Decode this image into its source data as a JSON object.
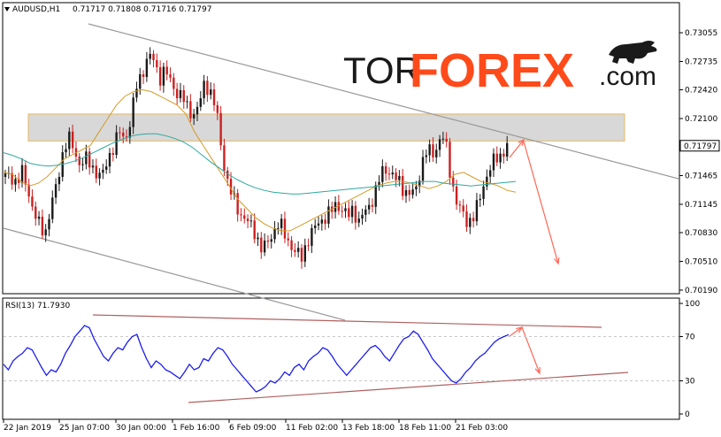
{
  "chart_data": [
    {
      "type": "candlestick",
      "header": {
        "symbol_label": "AUDUSD,H1",
        "ohlc_text": "0.71717 0.71808 0.71716 0.71797"
      },
      "y_ticks": [
        "0.73055",
        "0.72735",
        "0.72420",
        "0.72100",
        "0.71465",
        "0.71145",
        "0.70830",
        "0.70510",
        "0.70190"
      ],
      "y_tick_values": [
        0.73055,
        0.72735,
        0.7242,
        0.721,
        0.71465,
        0.71145,
        0.7083,
        0.7051,
        0.7019
      ],
      "ylim": [
        0.7016,
        0.7338
      ],
      "current_price_label": "0.71797",
      "current_price": 0.71797,
      "x_ticks": [
        "22 Jan 2019",
        "25 Jan 07:00",
        "30 Jan 00:00",
        "1 Feb 16:00",
        "6 Feb 09:00",
        "11 Feb 02:00",
        "13 Feb 18:00",
        "18 Feb 11:00",
        "21 Feb 03:00"
      ],
      "close_path": [
        0.7145,
        0.7146,
        0.7138,
        0.715,
        0.713,
        0.7105,
        0.709,
        0.7083,
        0.7112,
        0.7135,
        0.717,
        0.719,
        0.7175,
        0.716,
        0.7165,
        0.7158,
        0.715,
        0.7145,
        0.7165,
        0.718,
        0.7195,
        0.7185,
        0.721,
        0.7245,
        0.726,
        0.728,
        0.7275,
        0.7255,
        0.7265,
        0.725,
        0.724,
        0.7235,
        0.722,
        0.7215,
        0.7225,
        0.725,
        0.724,
        0.722,
        0.717,
        0.714,
        0.712,
        0.7105,
        0.71,
        0.709,
        0.708,
        0.7065,
        0.707,
        0.7085,
        0.7095,
        0.708,
        0.707,
        0.706,
        0.7055,
        0.7075,
        0.7085,
        0.7095,
        0.71,
        0.7105,
        0.7115,
        0.711,
        0.71,
        0.711,
        0.7095,
        0.7105,
        0.7115,
        0.713,
        0.715,
        0.7155,
        0.7145,
        0.714,
        0.713,
        0.7125,
        0.713,
        0.716,
        0.7175,
        0.717,
        0.7185,
        0.719,
        0.715,
        0.712,
        0.7105,
        0.7095,
        0.71,
        0.7115,
        0.714,
        0.7155,
        0.7165,
        0.717,
        0.71797
      ],
      "moving_averages": [
        {
          "color": "#d49b2a",
          "values": [
            0.715,
            0.7148,
            0.714,
            0.7135,
            0.7138,
            0.7145,
            0.7155,
            0.7165,
            0.717,
            0.7175,
            0.718,
            0.7195,
            0.721,
            0.7225,
            0.7235,
            0.724,
            0.7242,
            0.724,
            0.7235,
            0.723,
            0.7225,
            0.7215,
            0.7195,
            0.718,
            0.7165,
            0.715,
            0.7135,
            0.712,
            0.711,
            0.71,
            0.7093,
            0.7088,
            0.7085,
            0.7085,
            0.709,
            0.7095,
            0.71,
            0.7105,
            0.711,
            0.7115,
            0.712,
            0.7125,
            0.713,
            0.7135,
            0.7138,
            0.714,
            0.714,
            0.7138,
            0.7135,
            0.7132,
            0.7135,
            0.714,
            0.7148,
            0.715,
            0.7145,
            0.714,
            0.7138,
            0.7135,
            0.713,
            0.7128
          ]
        },
        {
          "color": "#2fa8a0",
          "values": [
            0.7172,
            0.7169,
            0.7165,
            0.716,
            0.7158,
            0.7157,
            0.7158,
            0.716,
            0.7163,
            0.7167,
            0.7172,
            0.7177,
            0.7182,
            0.7186,
            0.719,
            0.7192,
            0.7193,
            0.7193,
            0.7191,
            0.7188,
            0.7184,
            0.7178,
            0.717,
            0.7162,
            0.7155,
            0.7148,
            0.7142,
            0.7137,
            0.7133,
            0.713,
            0.7128,
            0.7127,
            0.7126,
            0.7126,
            0.7127,
            0.7128,
            0.7129,
            0.713,
            0.7131,
            0.7132,
            0.7133,
            0.7134,
            0.7135,
            0.7136,
            0.7137,
            0.7138,
            0.7139,
            0.714,
            0.714,
            0.7138,
            0.7137,
            0.7136,
            0.7135,
            0.7136,
            0.7137,
            0.7138,
            0.7139,
            0.714
          ]
        }
      ],
      "resistance_zone": [
        0.7185,
        0.7215
      ],
      "channel_line_color": "#999999",
      "forecast_arrow_color": "#ff6655"
    },
    {
      "type": "line",
      "title": "RSI(13) 71.7930",
      "y_ticks": [
        "100",
        "70",
        "30",
        "0"
      ],
      "y_tick_values": [
        100,
        70,
        30,
        0
      ],
      "ylim": [
        0,
        100
      ],
      "levels": [
        70,
        30
      ],
      "line_color": "#1c1cf0",
      "values": [
        45,
        40,
        48,
        52,
        55,
        60,
        58,
        50,
        42,
        35,
        40,
        38,
        45,
        55,
        62,
        70,
        75,
        80,
        78,
        68,
        60,
        52,
        48,
        55,
        60,
        58,
        65,
        70,
        72,
        60,
        50,
        42,
        48,
        45,
        40,
        38,
        35,
        32,
        38,
        45,
        40,
        42,
        50,
        48,
        55,
        60,
        58,
        52,
        45,
        40,
        35,
        30,
        25,
        20,
        22,
        25,
        30,
        28,
        32,
        38,
        35,
        42,
        45,
        40,
        48,
        52,
        55,
        60,
        58,
        52,
        45,
        40,
        35,
        40,
        45,
        50,
        55,
        60,
        62,
        58,
        52,
        48,
        55,
        62,
        68,
        70,
        75,
        72,
        65,
        58,
        50,
        45,
        40,
        35,
        30,
        28,
        32,
        38,
        42,
        48,
        52,
        55,
        60,
        65,
        68,
        70,
        71.793
      ],
      "trendline_color": "#b06060"
    }
  ],
  "logo": {
    "tor": "TOR",
    "forex": "FOREX",
    "com": ".com"
  },
  "colors": {
    "accent": "#ff4a1a",
    "bull_candle": "#1a1a1a",
    "bear_candle": "#cc2020"
  }
}
